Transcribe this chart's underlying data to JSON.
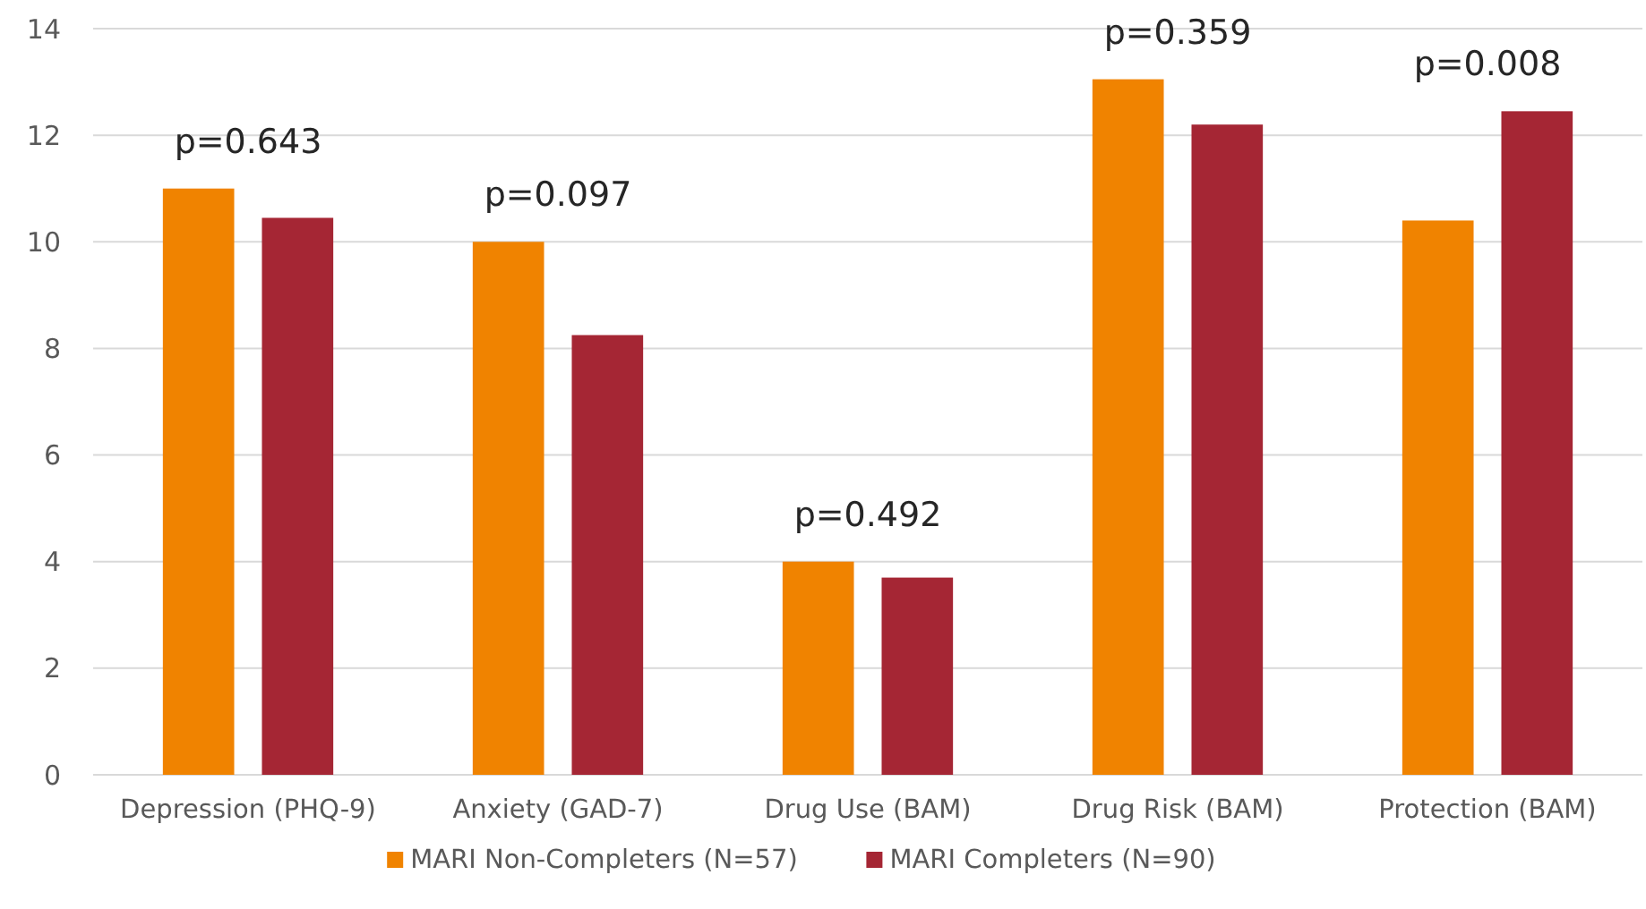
{
  "chart_data": {
    "type": "bar",
    "categories": [
      "Depression (PHQ-9)",
      "Anxiety (GAD-7)",
      "Drug Use (BAM)",
      "Drug Risk (BAM)",
      "Protection (BAM)"
    ],
    "series": [
      {
        "name": "MARI Non-Completers (N=57)",
        "color": "#f08300",
        "values": [
          11.0,
          10.0,
          4.0,
          13.05,
          10.4
        ]
      },
      {
        "name": "MARI Completers (N=90)",
        "color": "#a52634",
        "values": [
          10.45,
          8.25,
          3.7,
          12.2,
          12.45
        ]
      }
    ],
    "ylim": [
      0,
      14
    ],
    "yticks": [
      0,
      2,
      4,
      6,
      8,
      10,
      12,
      14
    ],
    "grid": "y",
    "legend": "bottom",
    "annotations": [
      "p=0.643",
      "p=0.097",
      "p=0.492",
      "p=0.359",
      "p=0.008"
    ]
  }
}
